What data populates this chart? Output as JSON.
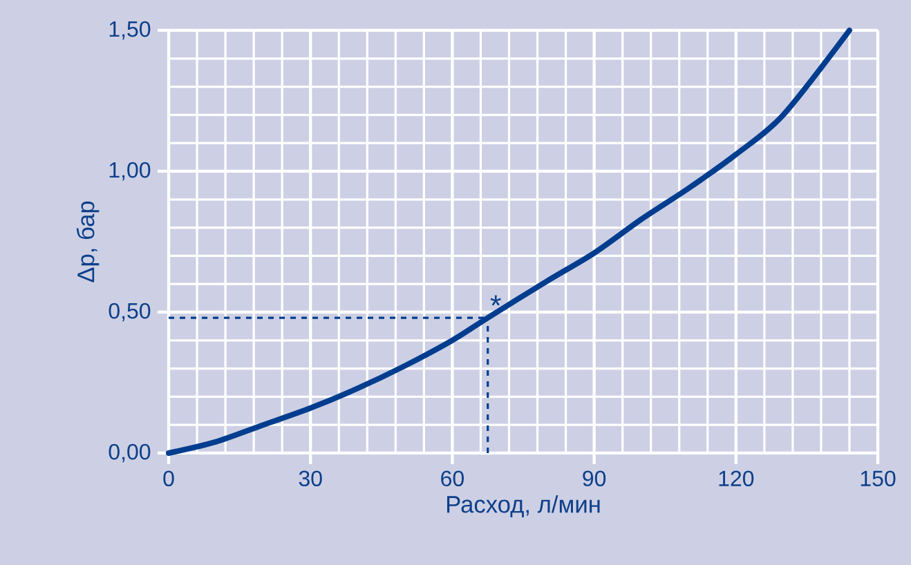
{
  "chart_data": {
    "type": "line",
    "xlabel": "Расход, л/мин",
    "ylabel": "Δp, бар",
    "x": [
      0,
      10,
      20,
      30,
      40,
      50,
      60,
      67.5,
      80,
      90,
      100,
      110,
      120,
      130,
      144
    ],
    "series": [
      {
        "color": "#003d8f",
        "values": [
          0,
          0.04,
          0.1,
          0.16,
          0.23,
          0.31,
          0.4,
          0.48,
          0.61,
          0.71,
          0.83,
          0.94,
          1.06,
          1.2,
          1.5
        ]
      }
    ],
    "xlim": [
      0,
      150
    ],
    "xticks": [
      0,
      30,
      60,
      90,
      120,
      150
    ],
    "ylim": [
      0,
      1.5
    ],
    "yticks": [
      {
        "value": 0,
        "label": "0,00"
      },
      {
        "value": 0.5,
        "label": "0,50"
      },
      {
        "value": 1,
        "label": "1,00"
      },
      {
        "value": 1.5,
        "label": "1,50"
      }
    ],
    "grid": true,
    "marker": "none",
    "line_style": "solid",
    "ref_lines": [
      {
        "axis": "y",
        "value": 0.48,
        "line_style": "dashed",
        "color": "#003d8f"
      },
      {
        "axis": "x",
        "value": 67.5,
        "line_style": "dashed",
        "color": "#003d8f"
      }
    ],
    "annotations": [
      {
        "text": "*",
        "x": 67.5,
        "y": 0.48
      }
    ]
  }
}
